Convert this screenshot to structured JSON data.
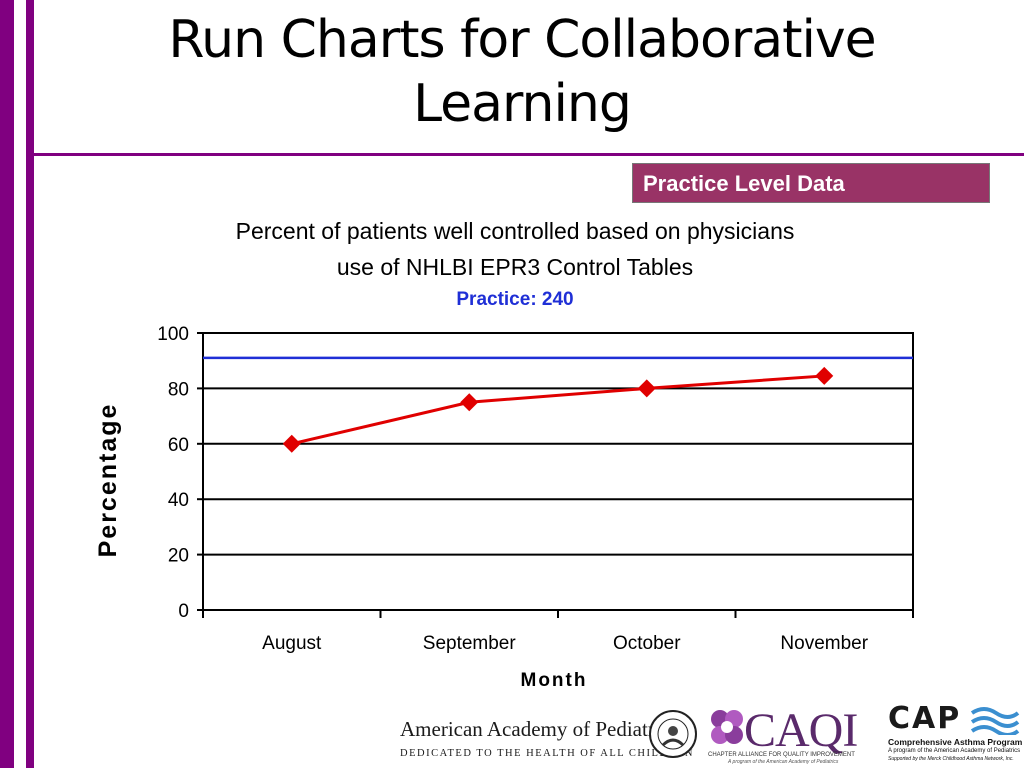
{
  "slide": {
    "title_line1": "Run Charts for Collaborative",
    "title_line2": "Learning",
    "badge": "Practice Level Data",
    "accent_color": "#800080",
    "badge_color": "#993366"
  },
  "chart_data": {
    "type": "line",
    "title_line1": "Percent of patients well controlled based on physicians",
    "title_line2": "use of NHLBI EPR3 Control Tables",
    "subtitle": "Practice: 240",
    "xlabel": "Month",
    "ylabel": "Percentage",
    "categories": [
      "August",
      "September",
      "October",
      "November"
    ],
    "series": [
      {
        "values": [
          60,
          75,
          80,
          84.5
        ],
        "color": "#e00000",
        "marker": "diamond"
      }
    ],
    "goal_line": {
      "value": 91,
      "color": "#1f2fd6"
    },
    "ylim": [
      0,
      100
    ],
    "yticks": [
      0,
      20,
      40,
      60,
      80,
      100
    ],
    "grid": "horizontal"
  },
  "footer": {
    "aap_name": "American Academy of Pediatrics",
    "aap_tagline": "DEDICATED TO THE HEALTH OF ALL CHILDREN",
    "caqi_name": "CAQI",
    "caqi_sub": "CHAPTER ALLIANCE FOR QUALITY IMPROVEMENT",
    "caqi_sub2": "A program of the American Academy of Pediatrics",
    "cap_name": "CAP",
    "cap_sub": "Comprehensive Asthma Program",
    "cap_sub2": "A program of the American Academy of Pediatrics",
    "cap_sub3": "Supported by the Merck Childhood Asthma Network, Inc."
  }
}
